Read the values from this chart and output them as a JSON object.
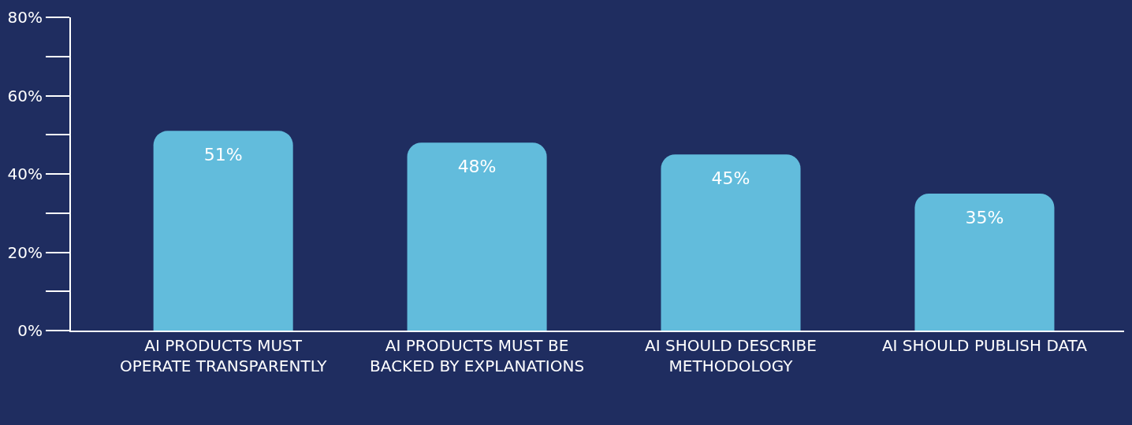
{
  "chart_data": {
    "type": "bar",
    "categories": [
      "AI PRODUCTS MUST OPERATE TRANSPARENTLY",
      "AI PRODUCTS MUST BE BACKED BY EXPLANATIONS",
      "AI SHOULD DESCRIBE METHODOLOGY",
      "AI SHOULD PUBLISH DATA"
    ],
    "values": [
      51,
      48,
      45,
      35
    ],
    "value_labels": [
      "51%",
      "48%",
      "45%",
      "35%"
    ],
    "color": "#62bcdc",
    "ylim": [
      0,
      80
    ],
    "yticks": [
      {
        "value": 0,
        "label": "0%"
      },
      {
        "value": 20,
        "label": "20%"
      },
      {
        "value": 40,
        "label": "40%"
      },
      {
        "value": 60,
        "label": "60%"
      },
      {
        "value": 80,
        "label": "80%"
      }
    ],
    "grid": false,
    "legend": false
  }
}
